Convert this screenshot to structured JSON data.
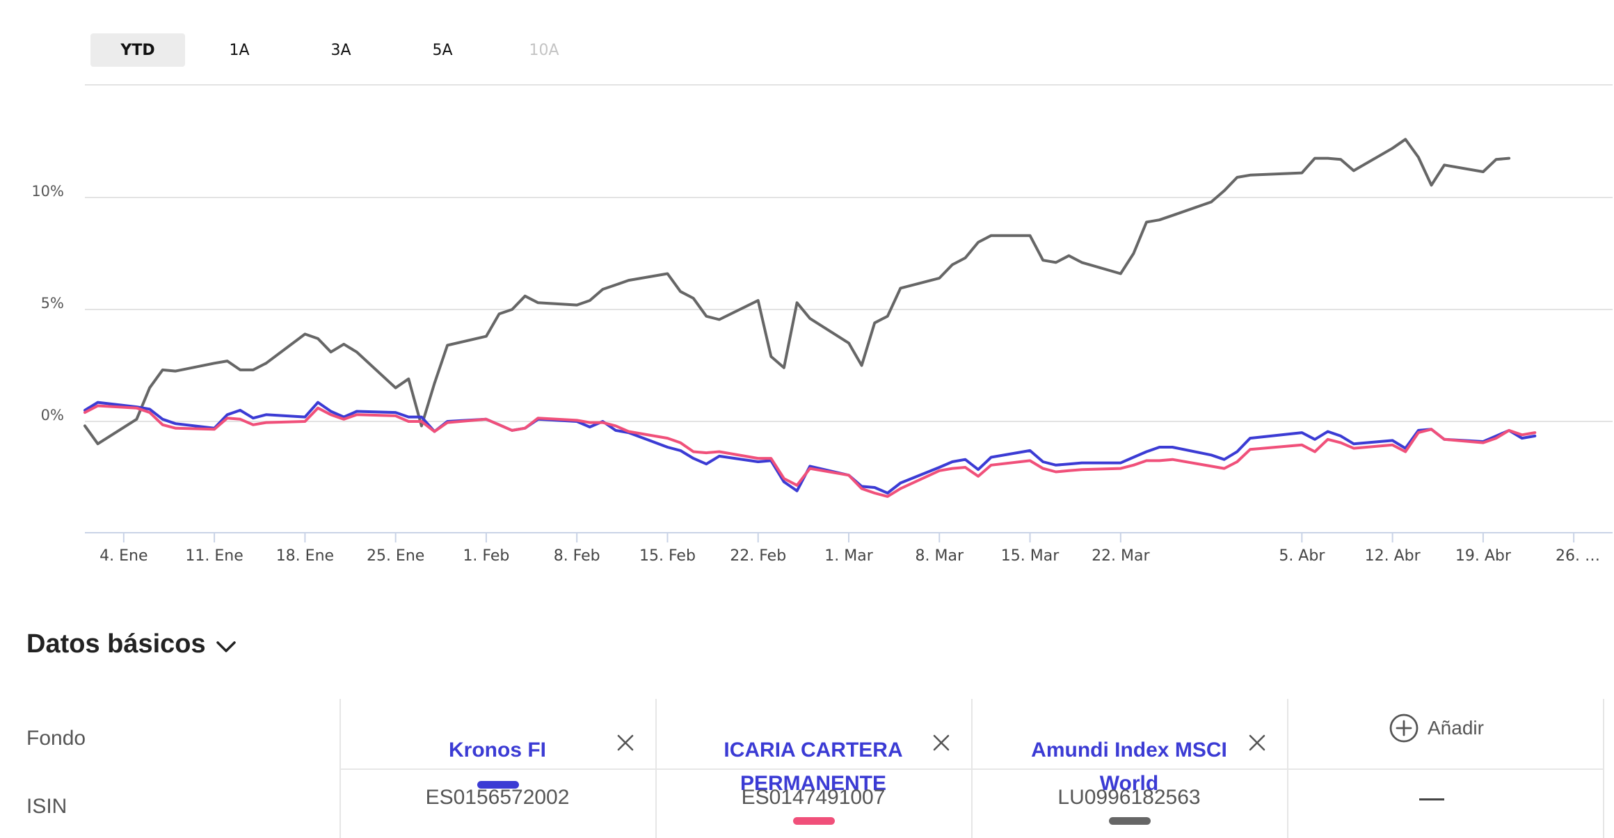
{
  "range_tabs": [
    {
      "label": "YTD",
      "state": "active"
    },
    {
      "label": "1A",
      "state": "normal"
    },
    {
      "label": "3A",
      "state": "normal"
    },
    {
      "label": "5A",
      "state": "normal"
    },
    {
      "label": "10A",
      "state": "disabled"
    }
  ],
  "chart_data": {
    "type": "line",
    "title": "",
    "xlabel": "",
    "ylabel": "",
    "y_unit": "%",
    "ylim": [
      -5,
      15
    ],
    "yticks": [
      0,
      5,
      10
    ],
    "ytick_labels": [
      "0%",
      "5%",
      "10%"
    ],
    "xlim": [
      "2021-01-01",
      "2021-04-29"
    ],
    "grid": true,
    "x_ticks": [
      {
        "date": "2021-01-04",
        "label": "4. Ene"
      },
      {
        "date": "2021-01-11",
        "label": "11. Ene"
      },
      {
        "date": "2021-01-18",
        "label": "18. Ene"
      },
      {
        "date": "2021-01-25",
        "label": "25. Ene"
      },
      {
        "date": "2021-02-01",
        "label": "1. Feb"
      },
      {
        "date": "2021-02-08",
        "label": "8. Feb"
      },
      {
        "date": "2021-02-15",
        "label": "15. Feb"
      },
      {
        "date": "2021-02-22",
        "label": "22. Feb"
      },
      {
        "date": "2021-03-01",
        "label": "1. Mar"
      },
      {
        "date": "2021-03-08",
        "label": "8. Mar"
      },
      {
        "date": "2021-03-15",
        "label": "15. Mar"
      },
      {
        "date": "2021-03-22",
        "label": "22. Mar"
      },
      {
        "date": "2021-04-05",
        "label": "5. Abr"
      },
      {
        "date": "2021-04-12",
        "label": "12. Abr"
      },
      {
        "date": "2021-04-19",
        "label": "19. Abr"
      },
      {
        "date": "2021-04-26",
        "label": "26. …"
      }
    ],
    "series": [
      {
        "color": "#666666",
        "points": [
          [
            "2021-01-01",
            -0.2
          ],
          [
            "2021-01-02",
            -1.0
          ],
          [
            "2021-01-05",
            0.1
          ],
          [
            "2021-01-06",
            1.5
          ],
          [
            "2021-01-07",
            2.3
          ],
          [
            "2021-01-08",
            2.25
          ],
          [
            "2021-01-11",
            2.6
          ],
          [
            "2021-01-12",
            2.7
          ],
          [
            "2021-01-13",
            2.3
          ],
          [
            "2021-01-14",
            2.3
          ],
          [
            "2021-01-15",
            2.6
          ],
          [
            "2021-01-18",
            3.9
          ],
          [
            "2021-01-19",
            3.7
          ],
          [
            "2021-01-20",
            3.1
          ],
          [
            "2021-01-21",
            3.45
          ],
          [
            "2021-01-22",
            3.1
          ],
          [
            "2021-01-25",
            1.5
          ],
          [
            "2021-01-26",
            1.9
          ],
          [
            "2021-01-27",
            -0.2
          ],
          [
            "2021-01-28",
            1.7
          ],
          [
            "2021-01-29",
            3.4
          ],
          [
            "2021-02-01",
            3.8
          ],
          [
            "2021-02-02",
            4.8
          ],
          [
            "2021-02-03",
            5.0
          ],
          [
            "2021-02-04",
            5.6
          ],
          [
            "2021-02-05",
            5.3
          ],
          [
            "2021-02-08",
            5.2
          ],
          [
            "2021-02-09",
            5.4
          ],
          [
            "2021-02-10",
            5.9
          ],
          [
            "2021-02-11",
            6.1
          ],
          [
            "2021-02-12",
            6.3
          ],
          [
            "2021-02-15",
            6.6
          ],
          [
            "2021-02-16",
            5.8
          ],
          [
            "2021-02-17",
            5.5
          ],
          [
            "2021-02-18",
            4.7
          ],
          [
            "2021-02-19",
            4.55
          ],
          [
            "2021-02-22",
            5.4
          ],
          [
            "2021-02-23",
            2.9
          ],
          [
            "2021-02-24",
            2.4
          ],
          [
            "2021-02-25",
            5.3
          ],
          [
            "2021-02-26",
            4.6
          ],
          [
            "2021-03-01",
            3.5
          ],
          [
            "2021-03-02",
            2.5
          ],
          [
            "2021-03-03",
            4.4
          ],
          [
            "2021-03-04",
            4.7
          ],
          [
            "2021-03-05",
            5.95
          ],
          [
            "2021-03-08",
            6.4
          ],
          [
            "2021-03-09",
            7.0
          ],
          [
            "2021-03-10",
            7.3
          ],
          [
            "2021-03-11",
            8.0
          ],
          [
            "2021-03-12",
            8.3
          ],
          [
            "2021-03-15",
            8.3
          ],
          [
            "2021-03-16",
            7.2
          ],
          [
            "2021-03-17",
            7.1
          ],
          [
            "2021-03-18",
            7.4
          ],
          [
            "2021-03-19",
            7.1
          ],
          [
            "2021-03-22",
            6.6
          ],
          [
            "2021-03-23",
            7.5
          ],
          [
            "2021-03-24",
            8.9
          ],
          [
            "2021-03-25",
            9.0
          ],
          [
            "2021-03-26",
            9.2
          ],
          [
            "2021-03-29",
            9.8
          ],
          [
            "2021-03-30",
            10.3
          ],
          [
            "2021-03-31",
            10.9
          ],
          [
            "2021-04-01",
            11.0
          ],
          [
            "2021-04-05",
            11.1
          ],
          [
            "2021-04-06",
            11.75
          ],
          [
            "2021-04-07",
            11.75
          ],
          [
            "2021-04-08",
            11.7
          ],
          [
            "2021-04-09",
            11.2
          ],
          [
            "2021-04-12",
            12.2
          ],
          [
            "2021-04-13",
            12.6
          ],
          [
            "2021-04-14",
            11.8
          ],
          [
            "2021-04-15",
            10.55
          ],
          [
            "2021-04-16",
            11.45
          ],
          [
            "2021-04-19",
            11.15
          ],
          [
            "2021-04-20",
            11.7
          ],
          [
            "2021-04-21",
            11.75
          ]
        ]
      },
      {
        "color": "#3b3bd4",
        "points": [
          [
            "2021-01-01",
            0.5
          ],
          [
            "2021-01-02",
            0.85
          ],
          [
            "2021-01-05",
            0.65
          ],
          [
            "2021-01-06",
            0.55
          ],
          [
            "2021-01-07",
            0.1
          ],
          [
            "2021-01-08",
            -0.1
          ],
          [
            "2021-01-11",
            -0.3
          ],
          [
            "2021-01-12",
            0.3
          ],
          [
            "2021-01-13",
            0.5
          ],
          [
            "2021-01-14",
            0.15
          ],
          [
            "2021-01-15",
            0.3
          ],
          [
            "2021-01-18",
            0.2
          ],
          [
            "2021-01-19",
            0.85
          ],
          [
            "2021-01-20",
            0.45
          ],
          [
            "2021-01-21",
            0.2
          ],
          [
            "2021-01-22",
            0.45
          ],
          [
            "2021-01-25",
            0.4
          ],
          [
            "2021-01-26",
            0.2
          ],
          [
            "2021-01-27",
            0.2
          ],
          [
            "2021-01-28",
            -0.45
          ],
          [
            "2021-01-29",
            0.0
          ],
          [
            "2021-02-01",
            0.1
          ],
          [
            "2021-02-02",
            -0.15
          ],
          [
            "2021-02-03",
            -0.4
          ],
          [
            "2021-02-04",
            -0.3
          ],
          [
            "2021-02-05",
            0.1
          ],
          [
            "2021-02-08",
            0.0
          ],
          [
            "2021-02-09",
            -0.25
          ],
          [
            "2021-02-10",
            0.0
          ],
          [
            "2021-02-11",
            -0.4
          ],
          [
            "2021-02-12",
            -0.5
          ],
          [
            "2021-02-15",
            -1.15
          ],
          [
            "2021-02-16",
            -1.3
          ],
          [
            "2021-02-17",
            -1.65
          ],
          [
            "2021-02-18",
            -1.9
          ],
          [
            "2021-02-19",
            -1.55
          ],
          [
            "2021-02-22",
            -1.8
          ],
          [
            "2021-02-23",
            -1.75
          ],
          [
            "2021-02-24",
            -2.7
          ],
          [
            "2021-02-25",
            -3.1
          ],
          [
            "2021-02-26",
            -2.0
          ],
          [
            "2021-03-01",
            -2.4
          ],
          [
            "2021-03-02",
            -2.9
          ],
          [
            "2021-03-03",
            -2.95
          ],
          [
            "2021-03-04",
            -3.2
          ],
          [
            "2021-03-05",
            -2.75
          ],
          [
            "2021-03-08",
            -2.05
          ],
          [
            "2021-03-09",
            -1.8
          ],
          [
            "2021-03-10",
            -1.7
          ],
          [
            "2021-03-11",
            -2.15
          ],
          [
            "2021-03-12",
            -1.6
          ],
          [
            "2021-03-15",
            -1.3
          ],
          [
            "2021-03-16",
            -1.8
          ],
          [
            "2021-03-17",
            -1.95
          ],
          [
            "2021-03-18",
            -1.9
          ],
          [
            "2021-03-19",
            -1.85
          ],
          [
            "2021-03-22",
            -1.85
          ],
          [
            "2021-03-23",
            -1.6
          ],
          [
            "2021-03-24",
            -1.35
          ],
          [
            "2021-03-25",
            -1.15
          ],
          [
            "2021-03-26",
            -1.15
          ],
          [
            "2021-03-29",
            -1.5
          ],
          [
            "2021-03-30",
            -1.7
          ],
          [
            "2021-03-31",
            -1.35
          ],
          [
            "2021-04-01",
            -0.75
          ],
          [
            "2021-04-05",
            -0.5
          ],
          [
            "2021-04-06",
            -0.8
          ],
          [
            "2021-04-07",
            -0.45
          ],
          [
            "2021-04-08",
            -0.65
          ],
          [
            "2021-04-09",
            -1.0
          ],
          [
            "2021-04-12",
            -0.85
          ],
          [
            "2021-04-13",
            -1.2
          ],
          [
            "2021-04-14",
            -0.4
          ],
          [
            "2021-04-15",
            -0.35
          ],
          [
            "2021-04-16",
            -0.8
          ],
          [
            "2021-04-19",
            -0.9
          ],
          [
            "2021-04-20",
            -0.65
          ],
          [
            "2021-04-21",
            -0.4
          ],
          [
            "2021-04-22",
            -0.75
          ],
          [
            "2021-04-23",
            -0.65
          ]
        ]
      },
      {
        "color": "#f0507a",
        "points": [
          [
            "2021-01-01",
            0.4
          ],
          [
            "2021-01-02",
            0.7
          ],
          [
            "2021-01-05",
            0.6
          ],
          [
            "2021-01-06",
            0.4
          ],
          [
            "2021-01-07",
            -0.15
          ],
          [
            "2021-01-08",
            -0.3
          ],
          [
            "2021-01-11",
            -0.35
          ],
          [
            "2021-01-12",
            0.15
          ],
          [
            "2021-01-13",
            0.1
          ],
          [
            "2021-01-14",
            -0.15
          ],
          [
            "2021-01-15",
            -0.05
          ],
          [
            "2021-01-18",
            0.0
          ],
          [
            "2021-01-19",
            0.6
          ],
          [
            "2021-01-20",
            0.3
          ],
          [
            "2021-01-21",
            0.1
          ],
          [
            "2021-01-22",
            0.3
          ],
          [
            "2021-01-25",
            0.25
          ],
          [
            "2021-01-26",
            0.0
          ],
          [
            "2021-01-27",
            0.0
          ],
          [
            "2021-01-28",
            -0.45
          ],
          [
            "2021-01-29",
            -0.05
          ],
          [
            "2021-02-01",
            0.1
          ],
          [
            "2021-02-02",
            -0.15
          ],
          [
            "2021-02-03",
            -0.4
          ],
          [
            "2021-02-04",
            -0.3
          ],
          [
            "2021-02-05",
            0.15
          ],
          [
            "2021-02-08",
            0.05
          ],
          [
            "2021-02-09",
            -0.05
          ],
          [
            "2021-02-10",
            -0.05
          ],
          [
            "2021-02-11",
            -0.2
          ],
          [
            "2021-02-12",
            -0.45
          ],
          [
            "2021-02-15",
            -0.75
          ],
          [
            "2021-02-16",
            -0.95
          ],
          [
            "2021-02-17",
            -1.35
          ],
          [
            "2021-02-18",
            -1.4
          ],
          [
            "2021-02-19",
            -1.35
          ],
          [
            "2021-02-22",
            -1.65
          ],
          [
            "2021-02-23",
            -1.65
          ],
          [
            "2021-02-24",
            -2.55
          ],
          [
            "2021-02-25",
            -2.85
          ],
          [
            "2021-02-26",
            -2.1
          ],
          [
            "2021-03-01",
            -2.4
          ],
          [
            "2021-03-02",
            -3.0
          ],
          [
            "2021-03-03",
            -3.2
          ],
          [
            "2021-03-04",
            -3.35
          ],
          [
            "2021-03-05",
            -3.0
          ],
          [
            "2021-03-08",
            -2.2
          ],
          [
            "2021-03-09",
            -2.1
          ],
          [
            "2021-03-10",
            -2.05
          ],
          [
            "2021-03-11",
            -2.45
          ],
          [
            "2021-03-12",
            -1.95
          ],
          [
            "2021-03-15",
            -1.75
          ],
          [
            "2021-03-16",
            -2.1
          ],
          [
            "2021-03-17",
            -2.25
          ],
          [
            "2021-03-18",
            -2.2
          ],
          [
            "2021-03-19",
            -2.15
          ],
          [
            "2021-03-22",
            -2.1
          ],
          [
            "2021-03-23",
            -1.95
          ],
          [
            "2021-03-24",
            -1.75
          ],
          [
            "2021-03-25",
            -1.75
          ],
          [
            "2021-03-26",
            -1.7
          ],
          [
            "2021-03-29",
            -2.0
          ],
          [
            "2021-03-30",
            -2.1
          ],
          [
            "2021-03-31",
            -1.8
          ],
          [
            "2021-04-01",
            -1.25
          ],
          [
            "2021-04-05",
            -1.05
          ],
          [
            "2021-04-06",
            -1.35
          ],
          [
            "2021-04-07",
            -0.8
          ],
          [
            "2021-04-08",
            -0.95
          ],
          [
            "2021-04-09",
            -1.2
          ],
          [
            "2021-04-12",
            -1.05
          ],
          [
            "2021-04-13",
            -1.35
          ],
          [
            "2021-04-14",
            -0.5
          ],
          [
            "2021-04-15",
            -0.35
          ],
          [
            "2021-04-16",
            -0.8
          ],
          [
            "2021-04-19",
            -0.95
          ],
          [
            "2021-04-20",
            -0.75
          ],
          [
            "2021-04-21",
            -0.4
          ],
          [
            "2021-04-22",
            -0.6
          ],
          [
            "2021-04-23",
            -0.5
          ]
        ]
      }
    ]
  },
  "basic_data": {
    "title": "Datos básicos",
    "row_labels": {
      "fund": "Fondo",
      "isin": "ISIN"
    },
    "funds": [
      {
        "name": "Kronos FI",
        "isin": "ES0156572002",
        "color": "#3b3bd4"
      },
      {
        "name": "ICARIA CARTERA PERMANENTE",
        "isin": "ES0147491007",
        "color": "#f0507a"
      },
      {
        "name": "Amundi Index MSCI World",
        "isin": "LU0996182563",
        "color": "#666666"
      }
    ],
    "add_label": "Añadir",
    "empty_isin": "—"
  }
}
